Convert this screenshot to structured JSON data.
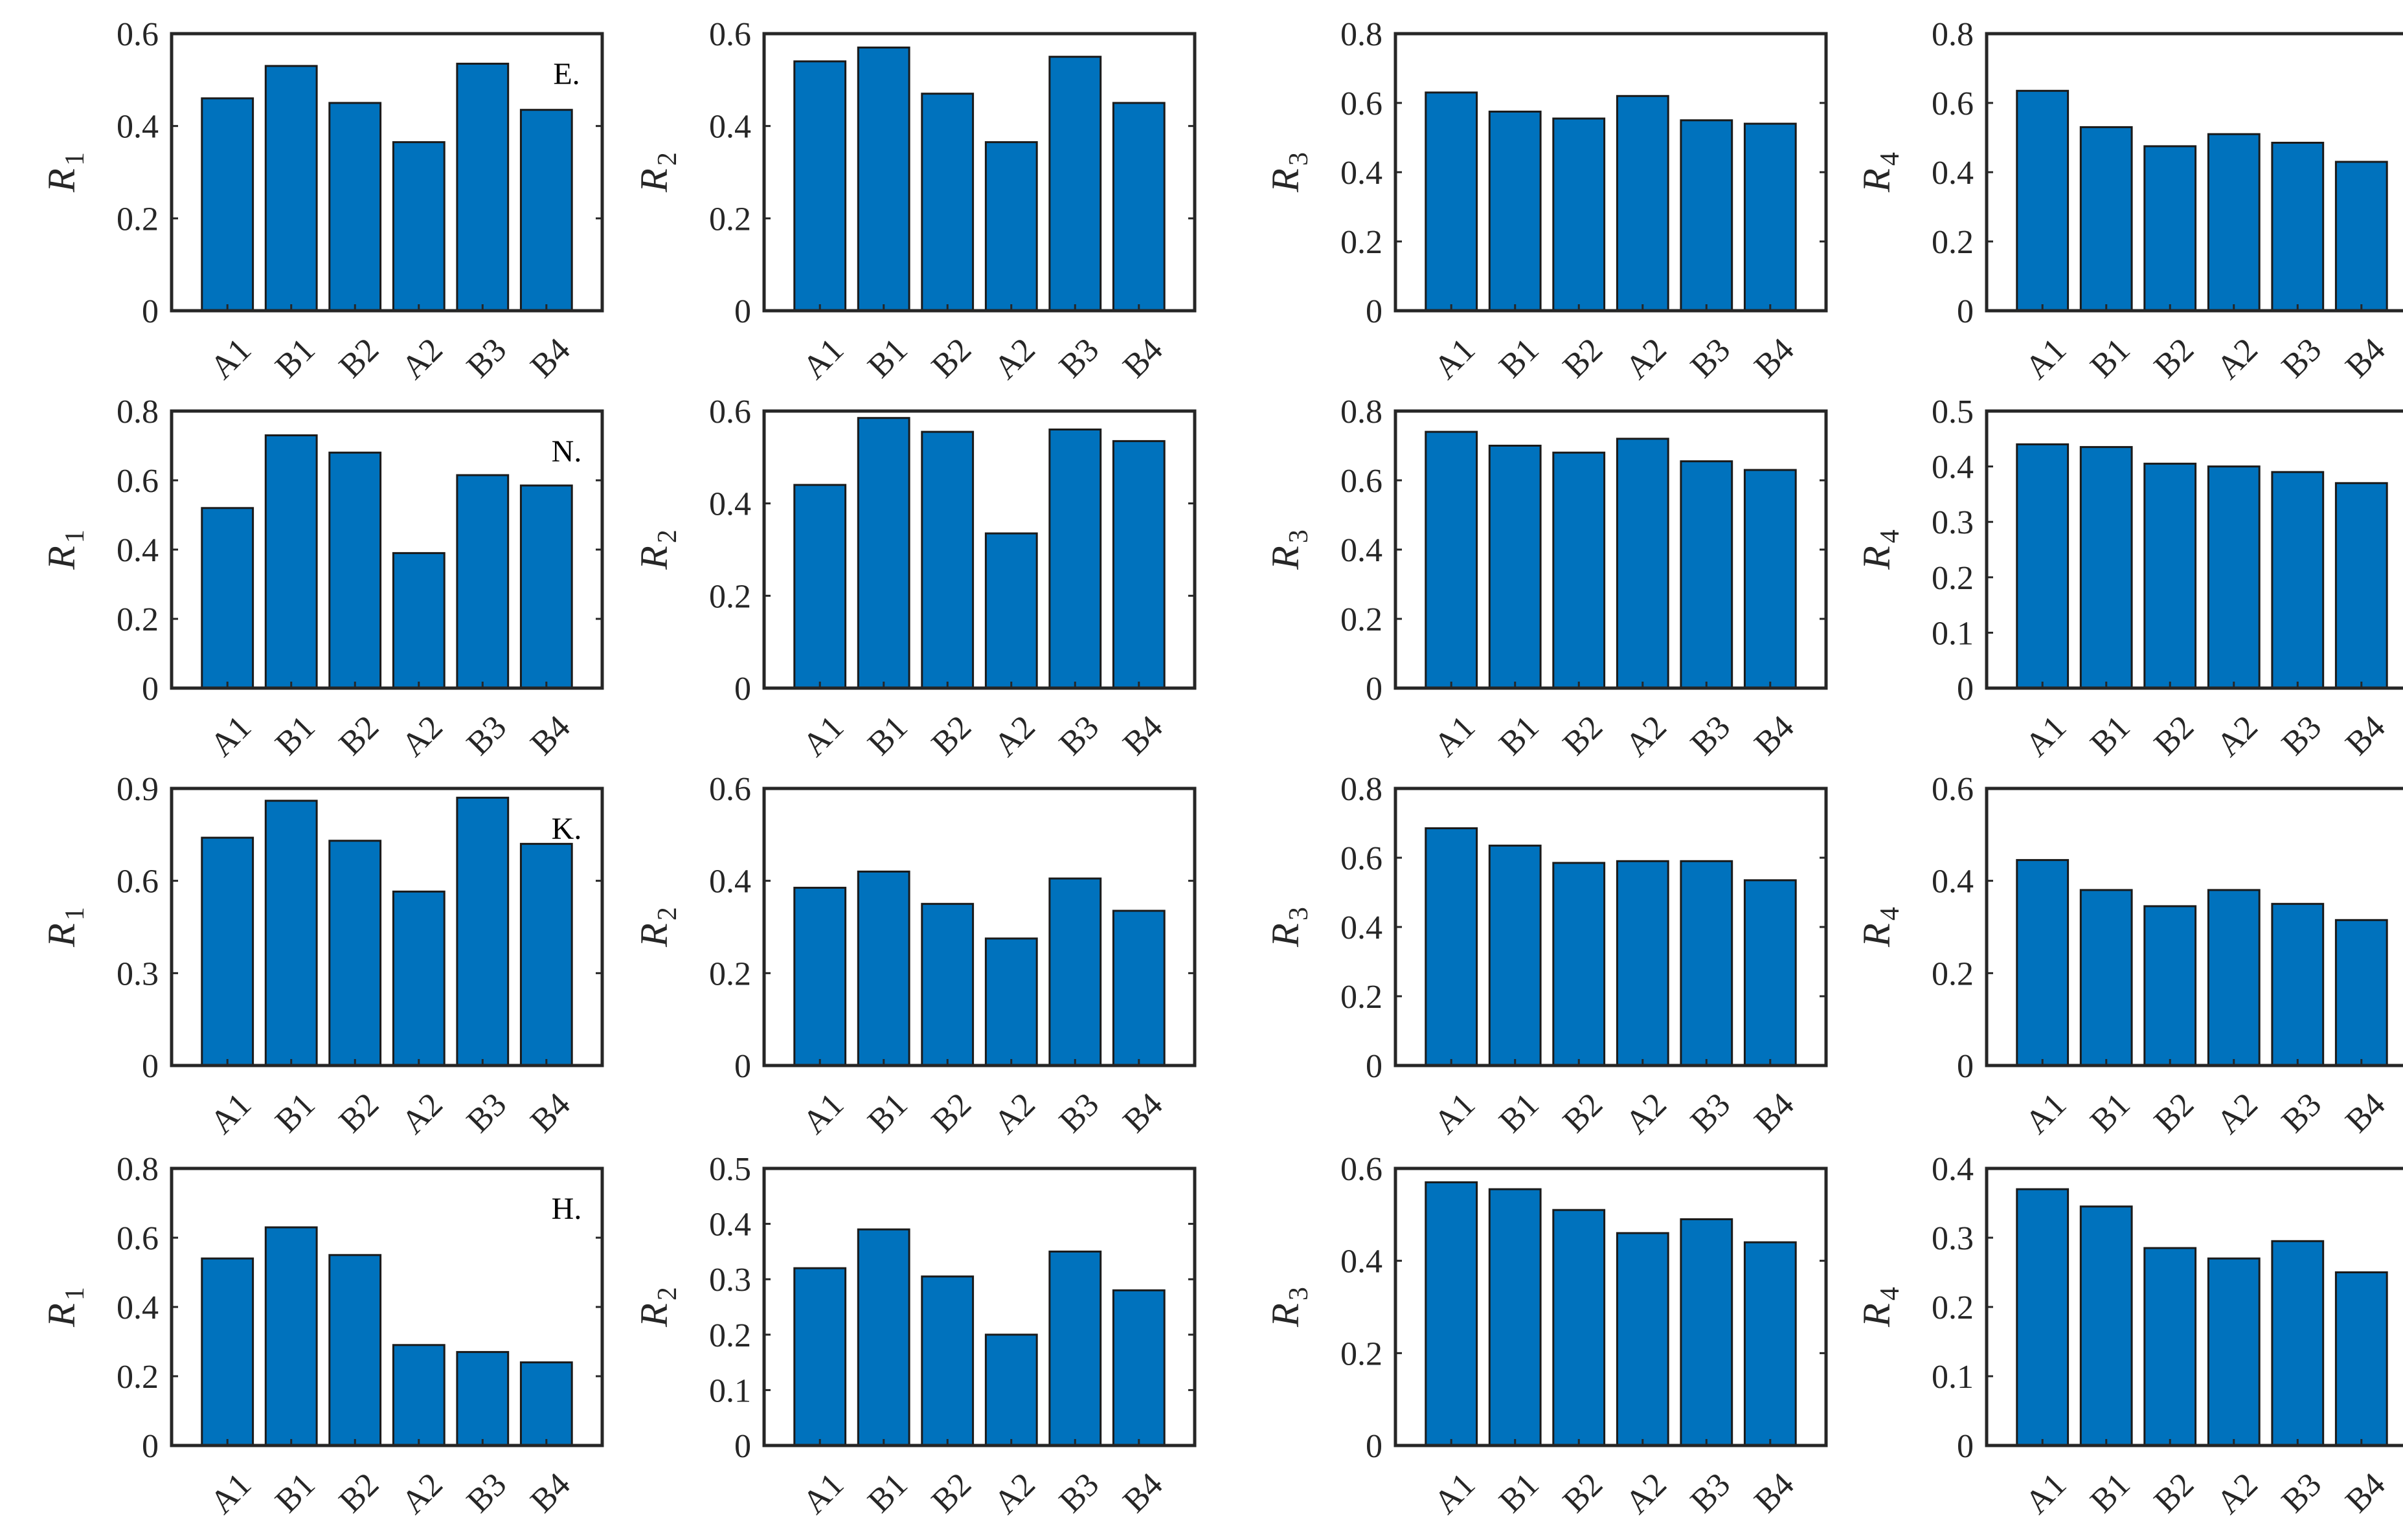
{
  "colors": {
    "bar": "#0072BD",
    "bar_edge": "#1a1a1a",
    "axis": "#262626"
  },
  "chart_data": [
    {
      "type": "bar",
      "row_label": "E.",
      "ylabel": "R",
      "ylabel_sub": "1",
      "ylim": [
        0,
        0.6
      ],
      "yticks": [
        "0",
        "0.2",
        "0.4",
        "0.6"
      ],
      "categories": [
        "A1",
        "B1",
        "B2",
        "A2",
        "B3",
        "B4"
      ],
      "values": [
        0.46,
        0.53,
        0.45,
        0.365,
        0.535,
        0.435
      ]
    },
    {
      "type": "bar",
      "ylabel": "R",
      "ylabel_sub": "2",
      "ylim": [
        0,
        0.6
      ],
      "yticks": [
        "0",
        "0.2",
        "0.4",
        "0.6"
      ],
      "categories": [
        "A1",
        "B1",
        "B2",
        "A2",
        "B3",
        "B4"
      ],
      "values": [
        0.54,
        0.57,
        0.47,
        0.365,
        0.55,
        0.45
      ]
    },
    {
      "type": "bar",
      "ylabel": "R",
      "ylabel_sub": "3",
      "ylim": [
        0,
        0.8
      ],
      "yticks": [
        "0",
        "0.2",
        "0.4",
        "0.6",
        "0.8"
      ],
      "categories": [
        "A1",
        "B1",
        "B2",
        "A2",
        "B3",
        "B4"
      ],
      "values": [
        0.63,
        0.575,
        0.555,
        0.62,
        0.55,
        0.54
      ]
    },
    {
      "type": "bar",
      "ylabel": "R",
      "ylabel_sub": "4",
      "ylim": [
        0,
        0.8
      ],
      "yticks": [
        "0",
        "0.2",
        "0.4",
        "0.6",
        "0.8"
      ],
      "categories": [
        "A1",
        "B1",
        "B2",
        "A2",
        "B3",
        "B4"
      ],
      "values": [
        0.635,
        0.53,
        0.475,
        0.51,
        0.485,
        0.43
      ]
    },
    {
      "type": "bar",
      "row_label": "N.",
      "ylabel": "R",
      "ylabel_sub": "1",
      "ylim": [
        0,
        0.8
      ],
      "yticks": [
        "0",
        "0.2",
        "0.4",
        "0.6",
        "0.8"
      ],
      "categories": [
        "A1",
        "B1",
        "B2",
        "A2",
        "B3",
        "B4"
      ],
      "values": [
        0.52,
        0.73,
        0.68,
        0.39,
        0.615,
        0.585
      ]
    },
    {
      "type": "bar",
      "ylabel": "R",
      "ylabel_sub": "2",
      "ylim": [
        0,
        0.6
      ],
      "yticks": [
        "0",
        "0.2",
        "0.4",
        "0.6"
      ],
      "categories": [
        "A1",
        "B1",
        "B2",
        "A2",
        "B3",
        "B4"
      ],
      "values": [
        0.44,
        0.585,
        0.555,
        0.335,
        0.56,
        0.535
      ]
    },
    {
      "type": "bar",
      "ylabel": "R",
      "ylabel_sub": "3",
      "ylim": [
        0,
        0.8
      ],
      "yticks": [
        "0",
        "0.2",
        "0.4",
        "0.6",
        "0.8"
      ],
      "categories": [
        "A1",
        "B1",
        "B2",
        "A2",
        "B3",
        "B4"
      ],
      "values": [
        0.74,
        0.7,
        0.68,
        0.72,
        0.655,
        0.63
      ]
    },
    {
      "type": "bar",
      "ylabel": "R",
      "ylabel_sub": "4",
      "ylim": [
        0,
        0.5
      ],
      "yticks": [
        "0",
        "0.1",
        "0.2",
        "0.3",
        "0.4",
        "0.5"
      ],
      "categories": [
        "A1",
        "B1",
        "B2",
        "A2",
        "B3",
        "B4"
      ],
      "values": [
        0.44,
        0.435,
        0.405,
        0.4,
        0.39,
        0.37
      ]
    },
    {
      "type": "bar",
      "row_label": "K.",
      "ylabel": "R",
      "ylabel_sub": "1",
      "ylim": [
        0,
        0.9
      ],
      "yticks": [
        "0",
        "0.3",
        "0.6",
        "0.9"
      ],
      "categories": [
        "A1",
        "B1",
        "B2",
        "A2",
        "B3",
        "B4"
      ],
      "values": [
        0.74,
        0.86,
        0.73,
        0.565,
        0.87,
        0.72
      ]
    },
    {
      "type": "bar",
      "ylabel": "R",
      "ylabel_sub": "2",
      "ylim": [
        0,
        0.6
      ],
      "yticks": [
        "0",
        "0.2",
        "0.4",
        "0.6"
      ],
      "categories": [
        "A1",
        "B1",
        "B2",
        "A2",
        "B3",
        "B4"
      ],
      "values": [
        0.385,
        0.42,
        0.35,
        0.275,
        0.405,
        0.335
      ]
    },
    {
      "type": "bar",
      "ylabel": "R",
      "ylabel_sub": "3",
      "ylim": [
        0,
        0.8
      ],
      "yticks": [
        "0",
        "0.2",
        "0.4",
        "0.6",
        "0.8"
      ],
      "categories": [
        "A1",
        "B1",
        "B2",
        "A2",
        "B3",
        "B4"
      ],
      "values": [
        0.685,
        0.635,
        0.585,
        0.59,
        0.59,
        0.535
      ]
    },
    {
      "type": "bar",
      "ylabel": "R",
      "ylabel_sub": "4",
      "ylim": [
        0,
        0.6
      ],
      "yticks": [
        "0",
        "0.2",
        "0.4",
        "0.6"
      ],
      "categories": [
        "A1",
        "B1",
        "B2",
        "A2",
        "B3",
        "B4"
      ],
      "values": [
        0.445,
        0.38,
        0.345,
        0.38,
        0.35,
        0.315
      ]
    },
    {
      "type": "bar",
      "row_label": "H.",
      "ylabel": "R",
      "ylabel_sub": "1",
      "ylim": [
        0,
        0.8
      ],
      "yticks": [
        "0",
        "0.2",
        "0.4",
        "0.6",
        "0.8"
      ],
      "categories": [
        "A1",
        "B1",
        "B2",
        "A2",
        "B3",
        "B4"
      ],
      "values": [
        0.54,
        0.63,
        0.55,
        0.29,
        0.27,
        0.24
      ]
    },
    {
      "type": "bar",
      "ylabel": "R",
      "ylabel_sub": "2",
      "ylim": [
        0,
        0.5
      ],
      "yticks": [
        "0",
        "0.1",
        "0.2",
        "0.3",
        "0.4",
        "0.5"
      ],
      "categories": [
        "A1",
        "B1",
        "B2",
        "A2",
        "B3",
        "B4"
      ],
      "values": [
        0.32,
        0.39,
        0.305,
        0.2,
        0.35,
        0.28
      ]
    },
    {
      "type": "bar",
      "ylabel": "R",
      "ylabel_sub": "3",
      "ylim": [
        0,
        0.6
      ],
      "yticks": [
        "0",
        "0.2",
        "0.4",
        "0.6"
      ],
      "categories": [
        "A1",
        "B1",
        "B2",
        "A2",
        "B3",
        "B4"
      ],
      "values": [
        0.57,
        0.555,
        0.51,
        0.46,
        0.49,
        0.44
      ]
    },
    {
      "type": "bar",
      "ylabel": "R",
      "ylabel_sub": "4",
      "ylim": [
        0,
        0.4
      ],
      "yticks": [
        "0",
        "0.1",
        "0.2",
        "0.3",
        "0.4"
      ],
      "categories": [
        "A1",
        "B1",
        "B2",
        "A2",
        "B3",
        "B4"
      ],
      "values": [
        0.37,
        0.345,
        0.285,
        0.27,
        0.295,
        0.25
      ]
    }
  ]
}
